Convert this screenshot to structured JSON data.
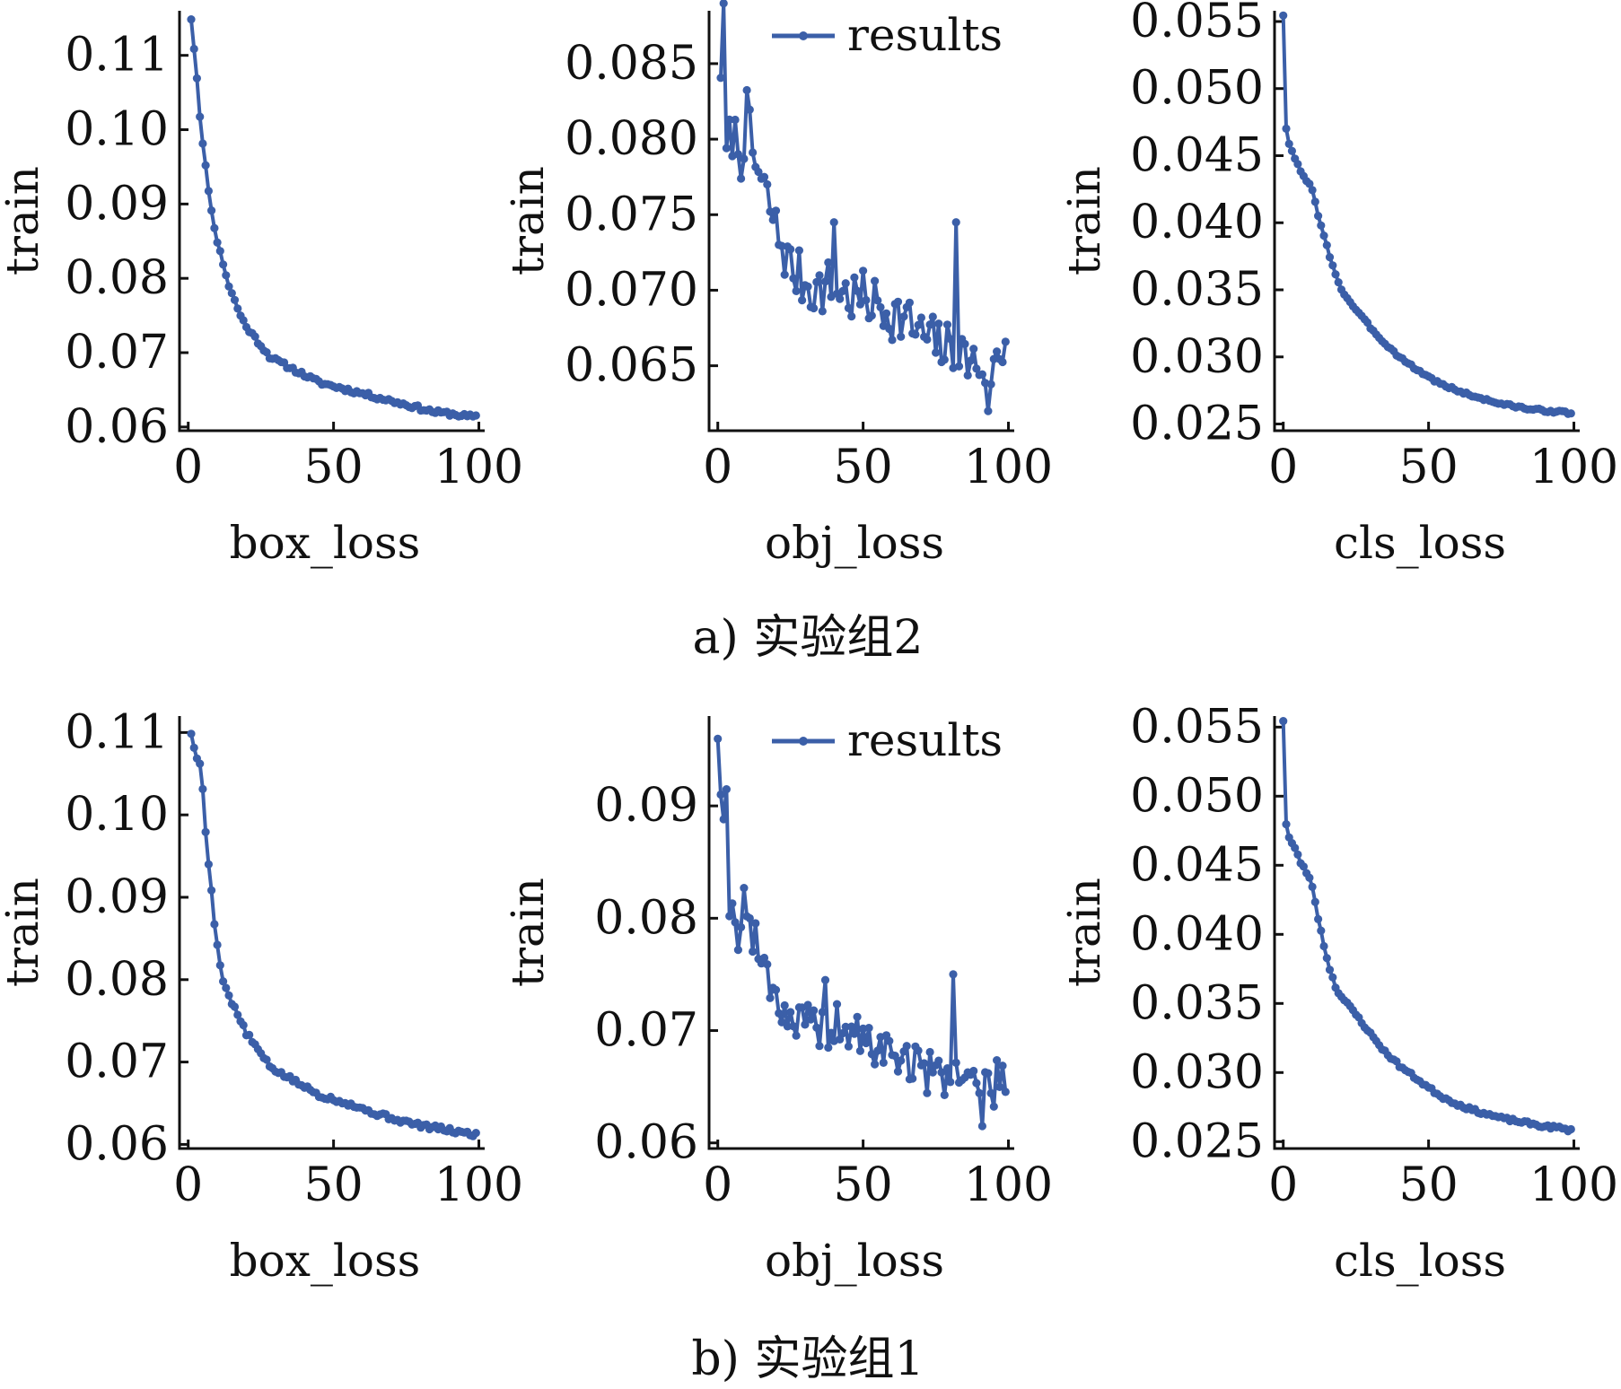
{
  "colors": {
    "series": "#3b5fa8",
    "axis": "#111111"
  },
  "captions": [
    {
      "text": "a) 实验组2"
    },
    {
      "text": "b) 实验组1"
    }
  ],
  "chart_data": [
    {
      "type": "line",
      "row": 0,
      "col": 0,
      "ylabel": "train",
      "xlabel": "box_loss",
      "xlim": [
        -3,
        102
      ],
      "ylim": [
        0.0595,
        0.116
      ],
      "xticks": [
        0,
        50,
        100
      ],
      "yticks": [
        0.06,
        0.07,
        0.08,
        0.09,
        0.1,
        0.11
      ],
      "ytick_labels": [
        "0.06",
        "0.07",
        "0.08",
        "0.09",
        "0.10",
        "0.11"
      ],
      "legend": null,
      "series": [
        {
          "anchors": [
            [
              1,
              0.115
            ],
            [
              2,
              0.111
            ],
            [
              3,
              0.107
            ],
            [
              4,
              0.102
            ],
            [
              5,
              0.098
            ],
            [
              6,
              0.095
            ],
            [
              7,
              0.092
            ],
            [
              8,
              0.089
            ],
            [
              9,
              0.087
            ],
            [
              10,
              0.085
            ],
            [
              12,
              0.082
            ],
            [
              14,
              0.079
            ],
            [
              16,
              0.077
            ],
            [
              18,
              0.075
            ],
            [
              20,
              0.0735
            ],
            [
              22,
              0.0725
            ],
            [
              25,
              0.071
            ],
            [
              28,
              0.0695
            ],
            [
              30,
              0.069
            ],
            [
              35,
              0.068
            ],
            [
              40,
              0.067
            ],
            [
              45,
              0.066
            ],
            [
              50,
              0.0655
            ],
            [
              55,
              0.065
            ],
            [
              60,
              0.0645
            ],
            [
              65,
              0.064
            ],
            [
              70,
              0.0635
            ],
            [
              75,
              0.063
            ],
            [
              80,
              0.0625
            ],
            [
              85,
              0.062
            ],
            [
              90,
              0.0618
            ],
            [
              95,
              0.0615
            ],
            [
              99,
              0.0613
            ]
          ],
          "noise": 0.0003,
          "seed": 11
        }
      ]
    },
    {
      "type": "line",
      "row": 0,
      "col": 1,
      "ylabel": "train",
      "xlabel": "obj_loss",
      "xlim": [
        -3,
        102
      ],
      "ylim": [
        0.0607,
        0.0885
      ],
      "xticks": [
        0,
        50,
        100
      ],
      "yticks": [
        0.065,
        0.07,
        0.075,
        0.08,
        0.085
      ],
      "ytick_labels": [
        "0.065",
        "0.070",
        "0.075",
        "0.080",
        "0.085"
      ],
      "legend": {
        "label": "results",
        "position": "top-right"
      },
      "series": [
        {
          "name": "results",
          "anchors": [
            [
              1,
              0.085
            ],
            [
              2,
              0.0875
            ],
            [
              3,
              0.079
            ],
            [
              5,
              0.0805
            ],
            [
              8,
              0.079
            ],
            [
              10,
              0.0815
            ],
            [
              12,
              0.079
            ],
            [
              15,
              0.077
            ],
            [
              18,
              0.0755
            ],
            [
              20,
              0.074
            ],
            [
              25,
              0.0715
            ],
            [
              30,
              0.0705
            ],
            [
              35,
              0.07
            ],
            [
              40,
              0.0705
            ],
            [
              45,
              0.0695
            ],
            [
              50,
              0.0695
            ],
            [
              55,
              0.069
            ],
            [
              60,
              0.0685
            ],
            [
              65,
              0.068
            ],
            [
              70,
              0.067
            ],
            [
              75,
              0.0665
            ],
            [
              80,
              0.066
            ],
            [
              85,
              0.0655
            ],
            [
              90,
              0.065
            ],
            [
              95,
              0.0648
            ],
            [
              99,
              0.0665
            ]
          ],
          "noise": 0.0018,
          "seed": 7,
          "spikes": [
            [
              82,
              0.0745
            ],
            [
              40,
              0.0745
            ],
            [
              93,
              0.062
            ]
          ]
        }
      ]
    },
    {
      "type": "line",
      "row": 0,
      "col": 2,
      "ylabel": "train",
      "xlabel": "cls_loss",
      "xlim": [
        -3,
        102
      ],
      "ylim": [
        0.0245,
        0.0558
      ],
      "xticks": [
        0,
        50,
        100
      ],
      "yticks": [
        0.025,
        0.03,
        0.035,
        0.04,
        0.045,
        0.05,
        0.055
      ],
      "ytick_labels": [
        "0.025",
        "0.030",
        "0.035",
        "0.040",
        "0.045",
        "0.050",
        "0.055"
      ],
      "legend": null,
      "series": [
        {
          "anchors": [
            [
              0,
              0.0555
            ],
            [
              1,
              0.047
            ],
            [
              2,
              0.0458
            ],
            [
              4,
              0.0448
            ],
            [
              6,
              0.0438
            ],
            [
              8,
              0.0432
            ],
            [
              10,
              0.0425
            ],
            [
              12,
              0.0405
            ],
            [
              14,
              0.039
            ],
            [
              16,
              0.0375
            ],
            [
              18,
              0.0362
            ],
            [
              20,
              0.035
            ],
            [
              25,
              0.0335
            ],
            [
              30,
              0.0322
            ],
            [
              35,
              0.031
            ],
            [
              40,
              0.03
            ],
            [
              45,
              0.0292
            ],
            [
              50,
              0.0285
            ],
            [
              55,
              0.0279
            ],
            [
              60,
              0.0275
            ],
            [
              65,
              0.0271
            ],
            [
              70,
              0.0268
            ],
            [
              75,
              0.0265
            ],
            [
              80,
              0.0263
            ],
            [
              85,
              0.0261
            ],
            [
              90,
              0.026
            ],
            [
              95,
              0.0259
            ],
            [
              99,
              0.0258
            ]
          ],
          "noise": 0.0001,
          "seed": 3
        }
      ]
    },
    {
      "type": "line",
      "row": 1,
      "col": 0,
      "ylabel": "train",
      "xlabel": "box_loss",
      "xlim": [
        -3,
        102
      ],
      "ylim": [
        0.0595,
        0.112
      ],
      "xticks": [
        0,
        50,
        100
      ],
      "yticks": [
        0.06,
        0.07,
        0.08,
        0.09,
        0.1,
        0.11
      ],
      "ytick_labels": [
        "0.06",
        "0.07",
        "0.08",
        "0.09",
        "0.10",
        "0.11"
      ],
      "legend": null,
      "series": [
        {
          "anchors": [
            [
              1,
              0.11
            ],
            [
              2,
              0.108
            ],
            [
              3,
              0.107
            ],
            [
              4,
              0.106
            ],
            [
              5,
              0.103
            ],
            [
              6,
              0.098
            ],
            [
              7,
              0.094
            ],
            [
              8,
              0.091
            ],
            [
              9,
              0.087
            ],
            [
              10,
              0.084
            ],
            [
              11,
              0.082
            ],
            [
              12,
              0.08
            ],
            [
              14,
              0.078
            ],
            [
              16,
              0.0765
            ],
            [
              18,
              0.075
            ],
            [
              20,
              0.0735
            ],
            [
              22,
              0.0725
            ],
            [
              25,
              0.071
            ],
            [
              28,
              0.0695
            ],
            [
              30,
              0.069
            ],
            [
              35,
              0.068
            ],
            [
              40,
              0.067
            ],
            [
              45,
              0.066
            ],
            [
              50,
              0.0655
            ],
            [
              55,
              0.065
            ],
            [
              60,
              0.0643
            ],
            [
              65,
              0.0637
            ],
            [
              70,
              0.0632
            ],
            [
              75,
              0.0627
            ],
            [
              80,
              0.0623
            ],
            [
              85,
              0.062
            ],
            [
              90,
              0.0617
            ],
            [
              95,
              0.0614
            ],
            [
              99,
              0.0612
            ]
          ],
          "noise": 0.0003,
          "seed": 5
        }
      ]
    },
    {
      "type": "line",
      "row": 1,
      "col": 1,
      "ylabel": "train",
      "xlabel": "obj_loss",
      "xlim": [
        -3,
        102
      ],
      "ylim": [
        0.0595,
        0.098
      ],
      "xticks": [
        0,
        50,
        100
      ],
      "yticks": [
        0.06,
        0.07,
        0.08,
        0.09
      ],
      "ytick_labels": [
        "0.06",
        "0.07",
        "0.08",
        "0.09"
      ],
      "legend": {
        "label": "results",
        "position": "top-right"
      },
      "series": [
        {
          "name": "results",
          "anchors": [
            [
              0,
              0.097
            ],
            [
              1,
              0.093
            ],
            [
              2,
              0.0875
            ],
            [
              3,
              0.092
            ],
            [
              4,
              0.082
            ],
            [
              5,
              0.08
            ],
            [
              7,
              0.079
            ],
            [
              9,
              0.082
            ],
            [
              11,
              0.079
            ],
            [
              14,
              0.077
            ],
            [
              17,
              0.0755
            ],
            [
              20,
              0.073
            ],
            [
              25,
              0.071
            ],
            [
              30,
              0.0705
            ],
            [
              35,
              0.07
            ],
            [
              40,
              0.0705
            ],
            [
              45,
              0.07
            ],
            [
              50,
              0.069
            ],
            [
              55,
              0.0685
            ],
            [
              60,
              0.068
            ],
            [
              65,
              0.0675
            ],
            [
              70,
              0.0665
            ],
            [
              75,
              0.0662
            ],
            [
              80,
              0.066
            ],
            [
              85,
              0.0658
            ],
            [
              90,
              0.0655
            ],
            [
              95,
              0.065
            ],
            [
              99,
              0.0665
            ]
          ],
          "noise": 0.002,
          "seed": 19,
          "spikes": [
            [
              81,
              0.075
            ],
            [
              37,
              0.0745
            ],
            [
              91,
              0.0615
            ]
          ]
        }
      ]
    },
    {
      "type": "line",
      "row": 1,
      "col": 2,
      "ylabel": "train",
      "xlabel": "cls_loss",
      "xlim": [
        -3,
        102
      ],
      "ylim": [
        0.0245,
        0.0558
      ],
      "xticks": [
        0,
        50,
        100
      ],
      "yticks": [
        0.025,
        0.03,
        0.035,
        0.04,
        0.045,
        0.05,
        0.055
      ],
      "ytick_labels": [
        "0.025",
        "0.030",
        "0.035",
        "0.040",
        "0.045",
        "0.050",
        "0.055"
      ],
      "legend": null,
      "series": [
        {
          "anchors": [
            [
              0,
              0.0555
            ],
            [
              1,
              0.048
            ],
            [
              2,
              0.047
            ],
            [
              4,
              0.0462
            ],
            [
              6,
              0.0452
            ],
            [
              8,
              0.0445
            ],
            [
              10,
              0.0435
            ],
            [
              12,
              0.0412
            ],
            [
              14,
              0.0392
            ],
            [
              16,
              0.0375
            ],
            [
              18,
              0.0362
            ],
            [
              20,
              0.0355
            ],
            [
              25,
              0.0342
            ],
            [
              30,
              0.0328
            ],
            [
              35,
              0.0315
            ],
            [
              40,
              0.0305
            ],
            [
              45,
              0.0297
            ],
            [
              50,
              0.0289
            ],
            [
              55,
              0.0282
            ],
            [
              60,
              0.0277
            ],
            [
              65,
              0.0273
            ],
            [
              70,
              0.027
            ],
            [
              75,
              0.0267
            ],
            [
              80,
              0.0265
            ],
            [
              85,
              0.0263
            ],
            [
              90,
              0.0261
            ],
            [
              95,
              0.026
            ],
            [
              99,
              0.0258
            ]
          ],
          "noise": 0.00012,
          "seed": 23
        }
      ]
    }
  ]
}
